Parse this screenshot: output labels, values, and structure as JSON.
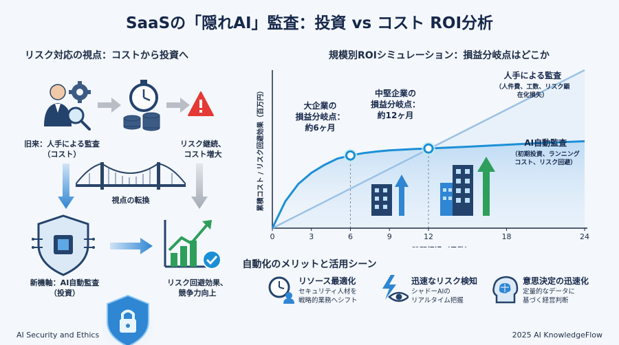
{
  "title": "SaaSの「隠れAI」監査：投資 vs コスト ROI分析",
  "left": {
    "section_title": "リスク対応の視点：コストから投資へ",
    "old_label": "旧来：人手による監査\n（コスト）",
    "risk_label": "リスク継続、\nコスト増大",
    "bridge_label": "視点の転換",
    "new_label": "新機軸：AI自動監査\n（投資）",
    "result_label": "リスク回避効果、\n競争力向上"
  },
  "chart_data": {
    "type": "line",
    "title": "規模別ROIシミュレーション：損益分岐点はどこか",
    "xlabel": "時間経過（月数）",
    "ylabel": "累積コスト / リスク回避効果（百万円）",
    "x_ticks": [
      0,
      3,
      6,
      9,
      12,
      18,
      24
    ],
    "xlim": [
      0,
      24
    ],
    "series": [
      {
        "name": "人手による監査",
        "sublabel": "（人件費、工数、リスク顕\n在化損失）",
        "x": [
          0,
          24
        ],
        "y": [
          0,
          100
        ]
      },
      {
        "name": "AI自動監査",
        "sublabel": "（初期投資、ランニング\nコスト、リスク回避）",
        "x": [
          0,
          1,
          2,
          3,
          4,
          5,
          6,
          7,
          8,
          9,
          10,
          11,
          12,
          15,
          18,
          21,
          24
        ],
        "y": [
          0,
          17,
          28,
          35,
          40,
          44,
          46,
          47.5,
          48.5,
          49.2,
          49.7,
          50.1,
          50.4,
          51.5,
          52.8,
          54,
          55
        ]
      }
    ],
    "annotations": [
      {
        "text": "大企業の\n損益分岐点：\n約6ヶ月",
        "x": 6
      },
      {
        "text": "中堅企業の\n損益分岐点：\n約12ヶ月",
        "x": 12
      }
    ]
  },
  "benefits": {
    "section_title": "自動化のメリットと活用シーン",
    "items": [
      {
        "title": "リソース最適化",
        "desc": "セキュリティ人材を\n戦略的業務へシフト",
        "icon": "clock-person-icon"
      },
      {
        "title": "迅速なリスク検知",
        "desc": "シャドーAIの\nリアルタイム把握",
        "icon": "lightning-eye-icon"
      },
      {
        "title": "意思決定の迅速化",
        "desc": "定量的なデータに\n基づく経営判断",
        "icon": "brain-head-icon"
      }
    ]
  },
  "footer": {
    "left": "AI Security and Ethics",
    "right": "2025 AI KnowledgeFlow"
  },
  "colors": {
    "navy": "#15274a",
    "human_line": "#9cc1e6",
    "ai_line": "#1b8fd6",
    "risk_red": "#e53935",
    "growth_green": "#2e9e5b"
  }
}
